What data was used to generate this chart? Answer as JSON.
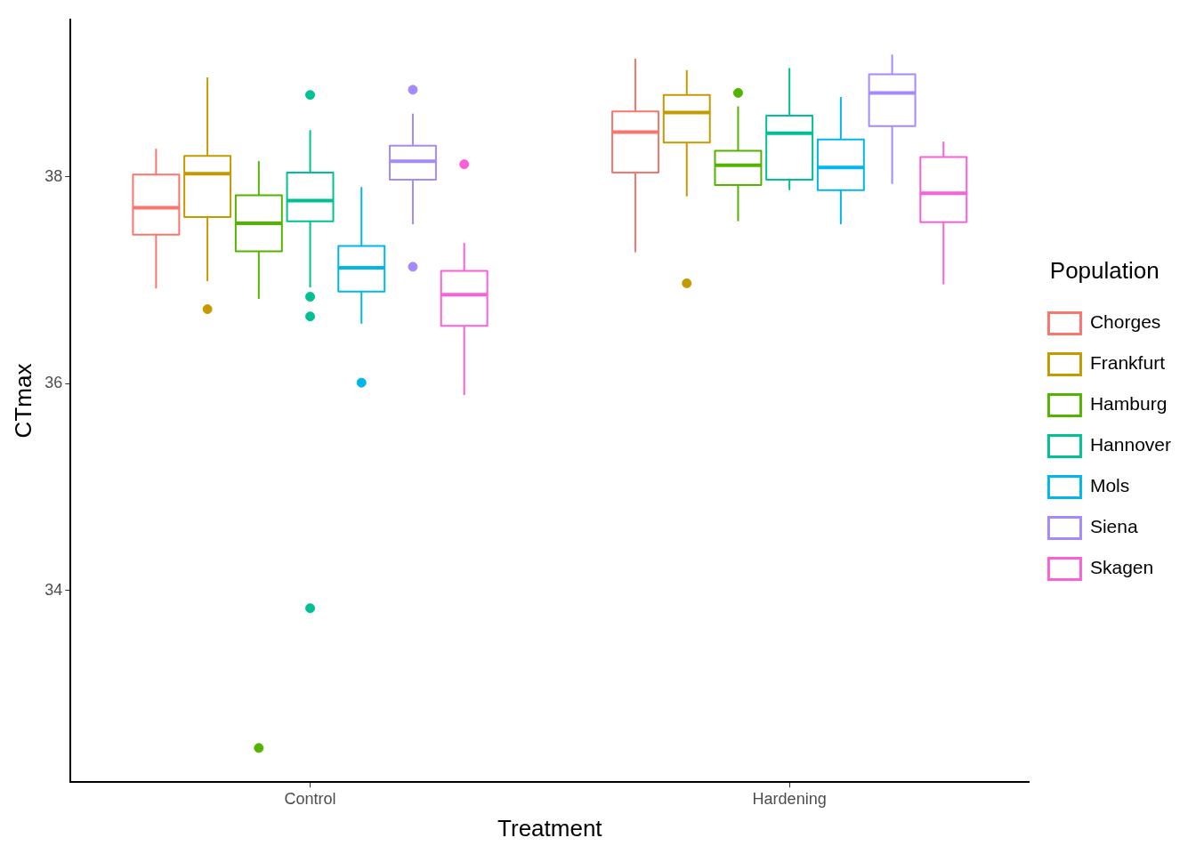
{
  "chart_data": {
    "type": "box",
    "xlabel": "Treatment",
    "ylabel": "CTmax",
    "legend_title": "Population",
    "legend": "right",
    "grid": false,
    "categories": [
      "Control",
      "Hardening"
    ],
    "ylim": [
      32.15,
      39.52
    ],
    "yticks": [
      34,
      36,
      38
    ],
    "series": [
      {
        "name": "Chorges",
        "color": "#F8766D",
        "boxes": [
          {
            "low": 36.92,
            "q1": 37.44,
            "median": 37.7,
            "q3": 38.02,
            "high": 38.27
          },
          {
            "low": 37.27,
            "q1": 38.04,
            "median": 38.43,
            "q3": 38.63,
            "high": 39.14
          }
        ]
      },
      {
        "name": "Frankfurt",
        "color": "#C49A00",
        "boxes": [
          {
            "low": 36.99,
            "q1": 37.61,
            "median": 38.03,
            "q3": 38.2,
            "high": 38.96,
            "outliers": [
              36.72
            ]
          },
          {
            "low": 37.81,
            "q1": 38.33,
            "median": 38.62,
            "q3": 38.79,
            "high": 39.03,
            "outliers": [
              36.97
            ]
          }
        ]
      },
      {
        "name": "Hamburg",
        "color": "#53B400",
        "boxes": [
          {
            "low": 36.82,
            "q1": 37.28,
            "median": 37.55,
            "q3": 37.82,
            "high": 38.15,
            "outliers": [
              32.48
            ]
          },
          {
            "low": 37.57,
            "q1": 37.92,
            "median": 38.11,
            "q3": 38.25,
            "high": 38.68,
            "outliers": [
              38.81
            ]
          }
        ]
      },
      {
        "name": "Hannover",
        "color": "#00C094",
        "boxes": [
          {
            "low": 36.93,
            "q1": 37.57,
            "median": 37.77,
            "q3": 38.04,
            "high": 38.45,
            "outliers": [
              38.79,
              36.84,
              36.65,
              33.83
            ]
          },
          {
            "low": 37.87,
            "q1": 37.97,
            "median": 38.42,
            "q3": 38.59,
            "high": 39.05
          }
        ]
      },
      {
        "name": "Mols",
        "color": "#00B6EB",
        "boxes": [
          {
            "low": 36.58,
            "q1": 36.89,
            "median": 37.12,
            "q3": 37.33,
            "high": 37.9,
            "outliers": [
              36.01
            ]
          },
          {
            "low": 37.54,
            "q1": 37.87,
            "median": 38.09,
            "q3": 38.36,
            "high": 38.77
          }
        ]
      },
      {
        "name": "Siena",
        "color": "#A58AFF",
        "boxes": [
          {
            "low": 37.54,
            "q1": 37.97,
            "median": 38.15,
            "q3": 38.3,
            "high": 38.61,
            "outliers": [
              38.84,
              37.13
            ]
          },
          {
            "low": 37.93,
            "q1": 38.49,
            "median": 38.81,
            "q3": 38.99,
            "high": 39.18
          }
        ]
      },
      {
        "name": "Skagen",
        "color": "#FB61D7",
        "boxes": [
          {
            "low": 35.89,
            "q1": 36.56,
            "median": 36.86,
            "q3": 37.09,
            "high": 37.36,
            "outliers": [
              38.12
            ]
          },
          {
            "low": 36.96,
            "q1": 37.56,
            "median": 37.84,
            "q3": 38.19,
            "high": 38.34
          }
        ]
      }
    ]
  }
}
